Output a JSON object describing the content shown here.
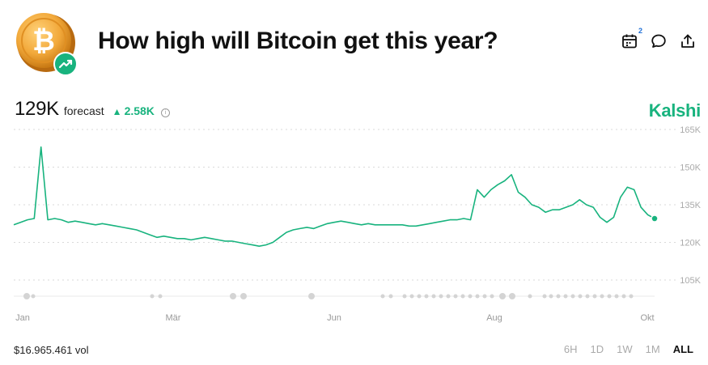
{
  "header": {
    "title": "How high will Bitcoin get this year?",
    "calendar_badge": "2"
  },
  "forecast": {
    "value": "129K",
    "label": "forecast",
    "delta": "2.58K"
  },
  "brand": "Kalshi",
  "footer": {
    "volume": "$16.965.461 vol",
    "ranges": [
      "6H",
      "1D",
      "1W",
      "1M",
      "ALL"
    ],
    "active_range": "ALL"
  },
  "colors": {
    "accent": "#18b37e",
    "coin": "#f2a93b",
    "grid": "#d9d9d9"
  },
  "icons": [
    "bitcoin-logo",
    "trend-up-icon",
    "calendar-icon",
    "comment-icon",
    "share-icon",
    "info-icon"
  ],
  "chart_data": {
    "type": "line",
    "x_labels": [
      "Jan",
      "Mär",
      "Jun",
      "Aug",
      "Okt"
    ],
    "y_ticks": [
      "165K",
      "150K",
      "135K",
      "120K",
      "105K"
    ],
    "ylim": [
      105000,
      165000
    ],
    "grid": true,
    "series": [
      {
        "values": [
          127000,
          128000,
          129000,
          129500,
          158000,
          129000,
          129500,
          129000,
          128000,
          128500,
          128000,
          127500,
          127000,
          127500,
          127000,
          126500,
          126000,
          125500,
          125000,
          124000,
          123000,
          122000,
          122500,
          122000,
          121500,
          121500,
          121000,
          121500,
          122000,
          121500,
          121000,
          120500,
          120500,
          120000,
          119500,
          119000,
          118500,
          119000,
          120000,
          122000,
          124000,
          125000,
          125500,
          126000,
          125500,
          126500,
          127500,
          128000,
          128500,
          128000,
          127500,
          127000,
          127500,
          127000,
          127000,
          127000,
          127000,
          127000,
          126500,
          126500,
          127000,
          127500,
          128000,
          128500,
          129000,
          129000,
          129500,
          129000,
          141000,
          138000,
          141000,
          143000,
          144500,
          147000,
          140000,
          138000,
          135000,
          134000,
          132000,
          133000,
          133000,
          134000,
          135000,
          137000,
          135000,
          134000,
          130000,
          128000,
          130000,
          138000,
          142000,
          141000,
          134000,
          131000,
          129500
        ]
      }
    ]
  }
}
